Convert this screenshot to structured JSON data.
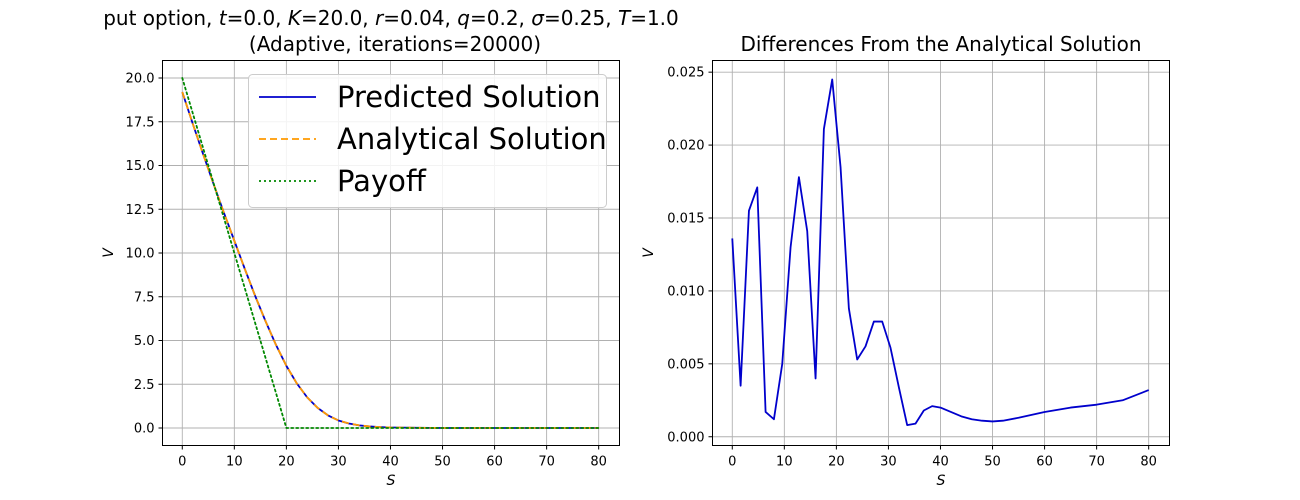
{
  "chart_data": [
    {
      "type": "line",
      "title_lines": [
        "put option, t=0.0, K=20.0, r=0.04, q=0.2, σ=0.25, T=1.0",
        "(Adaptive, iterations=20000)"
      ],
      "title_parts": [
        {
          "t": "put option, "
        },
        {
          "t": "t",
          "i": true
        },
        {
          "t": "=0.0, "
        },
        {
          "t": "K",
          "i": true
        },
        {
          "t": "=20.0, "
        },
        {
          "t": "r",
          "i": true
        },
        {
          "t": "=0.04, "
        },
        {
          "t": "q",
          "i": true
        },
        {
          "t": "=0.2, "
        },
        {
          "t": "σ",
          "i": true
        },
        {
          "t": "=0.25, "
        },
        {
          "t": "T",
          "i": true
        },
        {
          "t": "=1.0"
        }
      ],
      "xlabel": "S",
      "ylabel": "V",
      "xlim": [
        -3.8,
        84
      ],
      "ylim": [
        -1.0,
        21.0
      ],
      "xticks": [
        0,
        10,
        20,
        30,
        40,
        50,
        60,
        70,
        80
      ],
      "yticks": [
        0.0,
        2.5,
        5.0,
        7.5,
        10.0,
        12.5,
        15.0,
        17.5,
        20.0
      ],
      "ytick_labels": [
        "0.0",
        "2.5",
        "5.0",
        "7.5",
        "10.0",
        "12.5",
        "15.0",
        "17.5",
        "20.0"
      ],
      "grid": true,
      "legend": {
        "placement": "upper right"
      },
      "series": [
        {
          "name": "Predicted Solution",
          "color": "#0000cc",
          "style": "solid",
          "x": [
            0,
            2,
            4,
            6,
            8,
            10,
            12,
            14,
            16,
            18,
            20,
            22,
            24,
            26,
            28,
            30,
            32,
            34,
            36,
            38,
            40,
            45,
            50,
            60,
            70,
            80
          ],
          "y": [
            19.2,
            17.4,
            15.65,
            13.95,
            12.3,
            10.7,
            9.1,
            7.55,
            6.1,
            4.75,
            3.55,
            2.55,
            1.75,
            1.15,
            0.72,
            0.43,
            0.26,
            0.15,
            0.09,
            0.05,
            0.03,
            0.01,
            0.0,
            0.0,
            0.0,
            0.0
          ]
        },
        {
          "name": "Analytical Solution",
          "color": "#ff9900",
          "style": "dashed",
          "x": [
            0,
            2,
            4,
            6,
            8,
            10,
            12,
            14,
            16,
            18,
            20,
            22,
            24,
            26,
            28,
            30,
            32,
            34,
            36,
            38,
            40,
            45,
            50,
            60,
            70,
            80
          ],
          "y": [
            19.2,
            17.4,
            15.65,
            13.95,
            12.3,
            10.7,
            9.1,
            7.55,
            6.1,
            4.75,
            3.55,
            2.55,
            1.75,
            1.15,
            0.72,
            0.43,
            0.26,
            0.15,
            0.09,
            0.05,
            0.03,
            0.01,
            0.0,
            0.0,
            0.0,
            0.0
          ]
        },
        {
          "name": "Payoff",
          "color": "#008800",
          "style": "dotted",
          "x": [
            0,
            20,
            80
          ],
          "y": [
            20.0,
            0.0,
            0.0
          ]
        }
      ]
    },
    {
      "type": "line",
      "title_lines": [
        "Differences From the Analytical Solution"
      ],
      "xlabel": "S",
      "ylabel": "V",
      "xlim": [
        -3.8,
        84
      ],
      "ylim": [
        -0.0006,
        0.0258
      ],
      "xticks": [
        0,
        10,
        20,
        30,
        40,
        50,
        60,
        70,
        80
      ],
      "yticks": [
        0.0,
        0.005,
        0.01,
        0.015,
        0.02,
        0.025
      ],
      "ytick_labels": [
        "0.000",
        "0.005",
        "0.010",
        "0.015",
        "0.020",
        "0.025"
      ],
      "grid": true,
      "series": [
        {
          "color": "#0000cc",
          "style": "solid",
          "x": [
            0,
            1.6,
            3.2,
            4.8,
            6.4,
            8.0,
            9.6,
            11.2,
            12.8,
            14.4,
            16.0,
            17.6,
            19.2,
            20.8,
            22.4,
            24.0,
            25.6,
            27.2,
            28.8,
            30.4,
            32.0,
            33.6,
            35.2,
            36.8,
            38.4,
            40,
            42,
            44,
            46,
            48,
            50,
            52,
            55,
            60,
            65,
            70,
            75,
            80
          ],
          "y": [
            0.0136,
            0.0035,
            0.0155,
            0.0171,
            0.0017,
            0.0012,
            0.005,
            0.013,
            0.0178,
            0.0141,
            0.004,
            0.0211,
            0.0245,
            0.0185,
            0.0088,
            0.0053,
            0.0062,
            0.0079,
            0.0079,
            0.0061,
            0.0034,
            0.0008,
            0.0009,
            0.0018,
            0.0021,
            0.002,
            0.0017,
            0.0014,
            0.0012,
            0.0011,
            0.00105,
            0.0011,
            0.0013,
            0.0017,
            0.002,
            0.0022,
            0.0025,
            0.0032
          ]
        }
      ]
    }
  ]
}
